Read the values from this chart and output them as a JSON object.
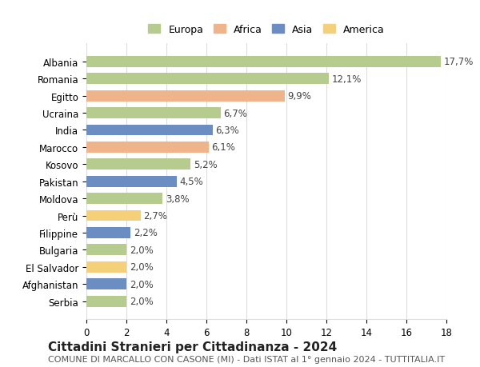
{
  "countries": [
    "Albania",
    "Romania",
    "Egitto",
    "Ucraina",
    "India",
    "Marocco",
    "Kosovo",
    "Pakistan",
    "Moldova",
    "Perù",
    "Filippine",
    "Bulgaria",
    "El Salvador",
    "Afghanistan",
    "Serbia"
  ],
  "values": [
    17.7,
    12.1,
    9.9,
    6.7,
    6.3,
    6.1,
    5.2,
    4.5,
    3.8,
    2.7,
    2.2,
    2.0,
    2.0,
    2.0,
    2.0
  ],
  "labels": [
    "17,7%",
    "12,1%",
    "9,9%",
    "6,7%",
    "6,3%",
    "6,1%",
    "5,2%",
    "4,5%",
    "3,8%",
    "2,7%",
    "2,2%",
    "2,0%",
    "2,0%",
    "2,0%",
    "2,0%"
  ],
  "continents": [
    "Europa",
    "Europa",
    "Africa",
    "Europa",
    "Asia",
    "Africa",
    "Europa",
    "Asia",
    "Europa",
    "America",
    "Asia",
    "Europa",
    "America",
    "Asia",
    "Europa"
  ],
  "continent_colors": {
    "Europa": "#b5cc8e",
    "Africa": "#f0b48a",
    "Asia": "#6b8ec2",
    "America": "#f5d07a"
  },
  "legend_order": [
    "Europa",
    "Africa",
    "Asia",
    "America"
  ],
  "title": "Cittadini Stranieri per Cittadinanza - 2024",
  "subtitle": "COMUNE DI MARCALLO CON CASONE (MI) - Dati ISTAT al 1° gennaio 2024 - TUTTITALIA.IT",
  "xlim": [
    0,
    18
  ],
  "xticks": [
    0,
    2,
    4,
    6,
    8,
    10,
    12,
    14,
    16,
    18
  ],
  "background_color": "#ffffff",
  "grid_color": "#dddddd",
  "bar_height": 0.65,
  "label_fontsize": 8.5,
  "title_fontsize": 11,
  "subtitle_fontsize": 8,
  "tick_fontsize": 8.5,
  "legend_fontsize": 9
}
